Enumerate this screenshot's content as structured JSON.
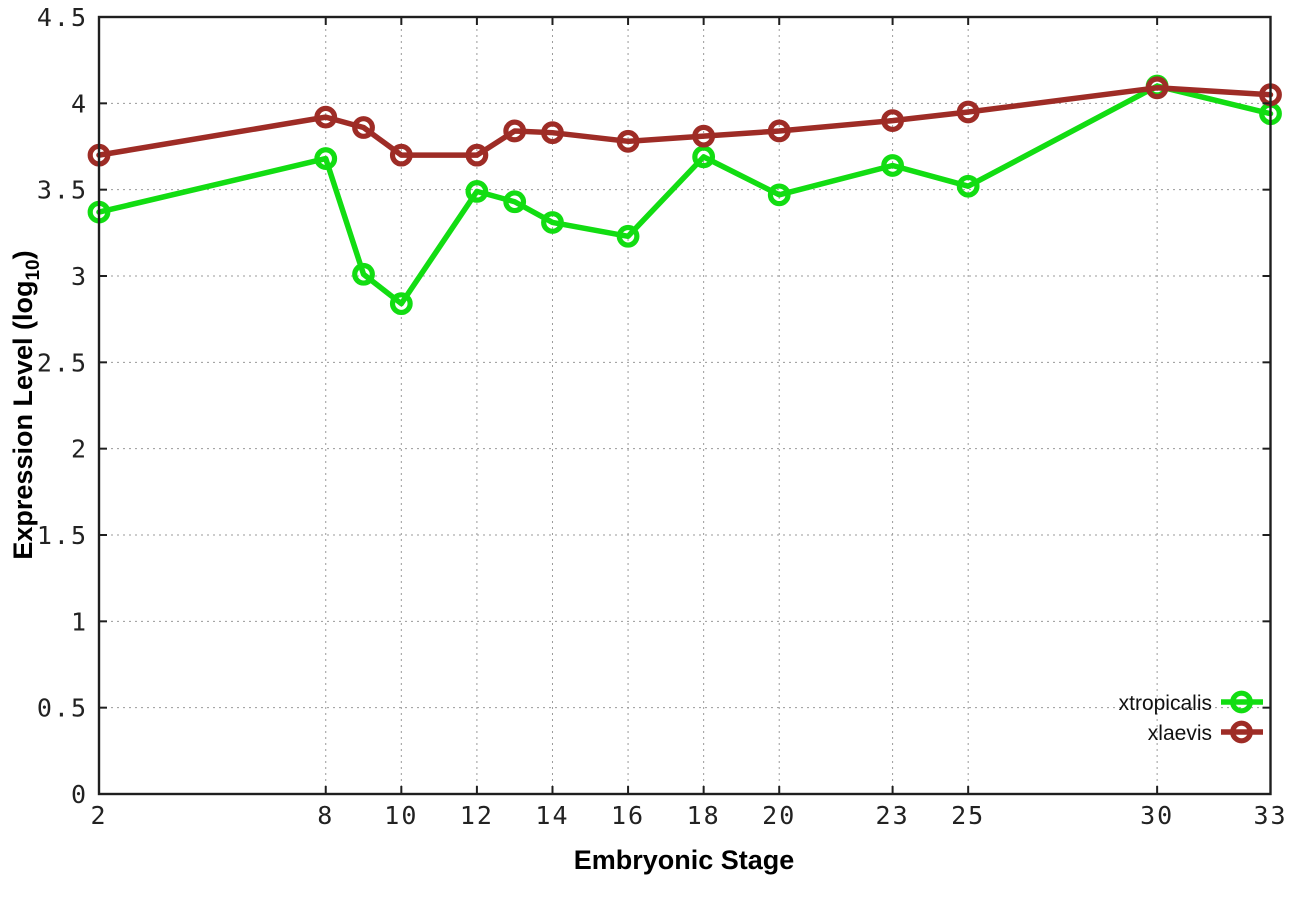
{
  "figure": {
    "background": "#ffffff",
    "border_color": "#1f1f1f",
    "grid_color": "#9a9a9a",
    "tick_label_color": "#222222"
  },
  "chart_data": {
    "type": "line",
    "title": "",
    "xlabel": "Embryonic Stage",
    "ylabel": "Expression Level (log10)",
    "ylabel_base": "Expression Level (log",
    "ylabel_sub": "10",
    "ylabel_close": ")",
    "xlim": [
      2,
      33
    ],
    "ylim": [
      0,
      4.5
    ],
    "grid": true,
    "legend_position": "bottom-right",
    "marker": "open-circle",
    "x": [
      2,
      8,
      9,
      10,
      12,
      13,
      14,
      16,
      18,
      20,
      23,
      25,
      30,
      33
    ],
    "xticks": [
      2,
      8,
      10,
      12,
      14,
      16,
      18,
      20,
      23,
      25,
      30,
      33
    ],
    "xtick_labels": [
      "2",
      "8",
      "10",
      "12",
      "14",
      "16",
      "18",
      "20",
      "23",
      "25",
      "30",
      "33"
    ],
    "yticks": [
      0,
      0.5,
      1,
      1.5,
      2,
      2.5,
      3,
      3.5,
      4,
      4.5
    ],
    "ytick_labels": [
      "0",
      "0.5",
      "1",
      "1.5",
      "2",
      "2.5",
      "3",
      "3.5",
      "4",
      "4.5"
    ],
    "series": [
      {
        "name": "xtropicalis",
        "color": "#12dd12",
        "values": [
          3.37,
          3.68,
          3.01,
          2.84,
          3.49,
          3.43,
          3.31,
          3.23,
          3.69,
          3.47,
          3.64,
          3.52,
          4.1,
          3.94
        ]
      },
      {
        "name": "xlaevis",
        "color": "#9e2c26",
        "values": [
          3.7,
          3.92,
          3.86,
          3.7,
          3.7,
          3.84,
          3.83,
          3.78,
          3.81,
          3.84,
          3.9,
          3.95,
          4.09,
          4.05
        ]
      }
    ]
  }
}
